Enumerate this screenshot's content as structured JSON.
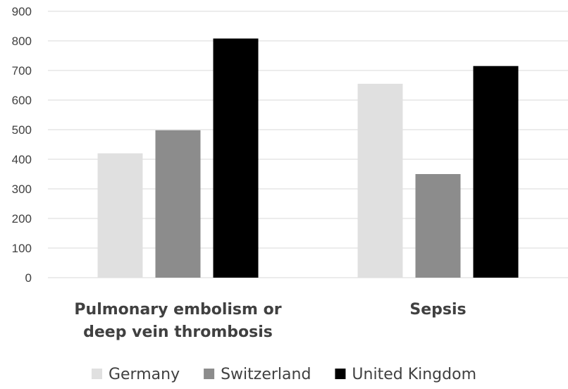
{
  "chart_data": {
    "type": "bar",
    "categories": [
      [
        "Pulmonary embolism or",
        "deep vein thrombosis"
      ],
      [
        "Sepsis"
      ]
    ],
    "series": [
      {
        "name": "Germany",
        "color": "#e0e0e0",
        "values": [
          420,
          655
        ]
      },
      {
        "name": "Switzerland",
        "color": "#8c8c8c",
        "values": [
          498,
          350
        ]
      },
      {
        "name": "United Kingdom",
        "color": "#000000",
        "values": [
          808,
          715
        ]
      }
    ],
    "yticks": [
      "0",
      "100",
      "200",
      "300",
      "400",
      "500",
      "600",
      "700",
      "800",
      "900"
    ],
    "ylim": [
      0,
      900
    ],
    "grid": true,
    "legend": "bottom"
  }
}
